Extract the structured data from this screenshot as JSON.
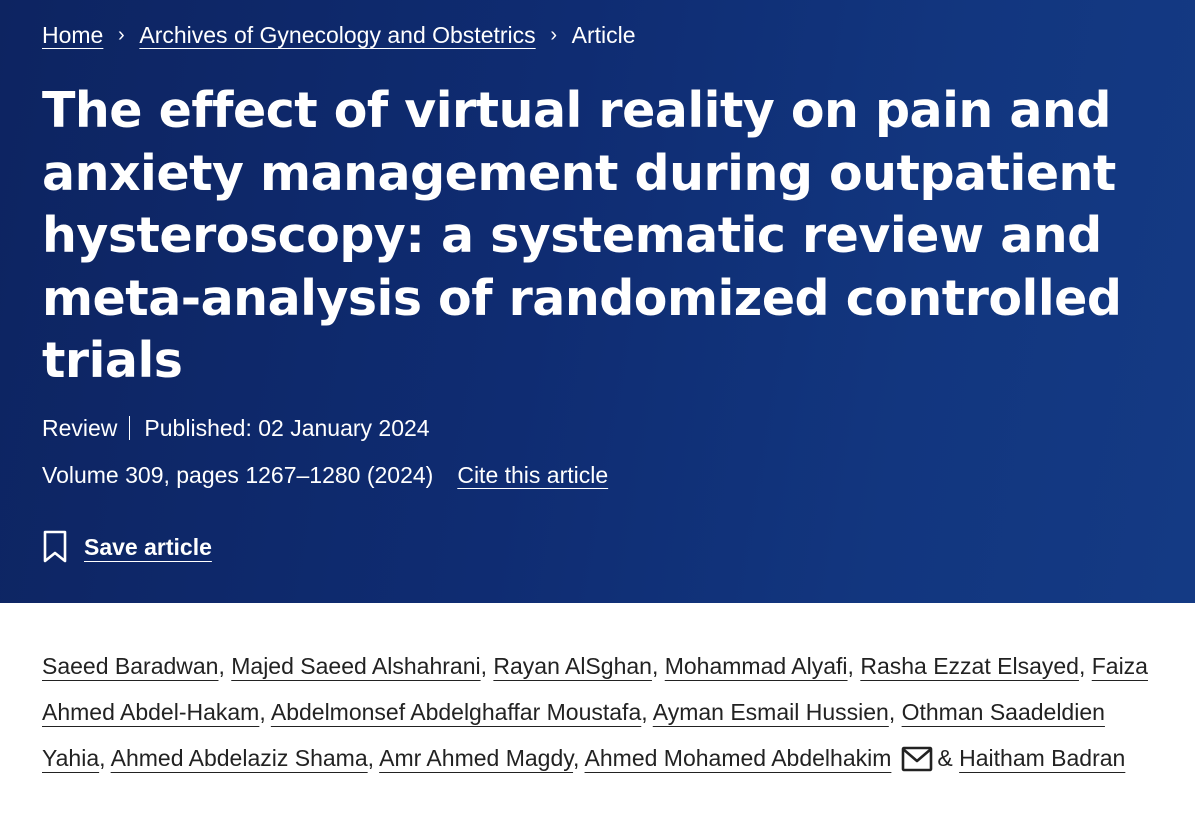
{
  "breadcrumb": {
    "home": "Home",
    "journal": "Archives of Gynecology and Obstetrics",
    "current": "Article",
    "separator": "›"
  },
  "article": {
    "title": "The effect of virtual reality on pain and anxiety management during outpatient hysteroscopy: a systematic review and meta-analysis of randomized controlled trials",
    "type": "Review",
    "published": "Published: 02 January 2024",
    "volume_pages": "Volume 309, pages 1267–1280 (2024)",
    "cite_label": "Cite this article",
    "save_label": "Save article"
  },
  "authors": [
    "Saeed Baradwan",
    "Majed Saeed Alshahrani",
    "Rayan AlSghan",
    "Mohammad Alyafi",
    "Rasha Ezzat Elsayed",
    "Faiza Ahmed Abdel-Hakam",
    "Abdelmonsef Abdelghaffar Moustafa",
    "Ayman Esmail Hussien",
    "Othman Saadeldien Yahia",
    "Ahmed Abdelaziz Shama",
    "Amr Ahmed Magdy",
    "Ahmed Mohamed Abdelhakim",
    "Haitham Badran"
  ],
  "punctuation": {
    "comma": ",",
    "ampersand": "&"
  },
  "icons": {
    "save": "bookmark-icon",
    "contact": "envelope-icon"
  },
  "colors": {
    "hero_background": "#0f2c72",
    "hero_text": "#ffffff",
    "body_text": "#222222"
  }
}
